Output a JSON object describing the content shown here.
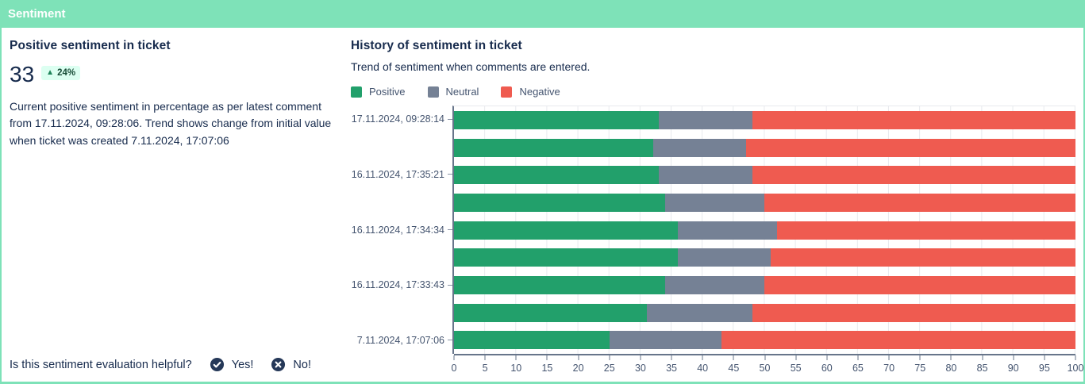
{
  "header": {
    "title": "Sentiment"
  },
  "colors": {
    "header_bg": "#7EE2B8",
    "panel_border": "#7EE2B8",
    "positive": "#22A06B",
    "neutral": "#758195",
    "negative": "#EF5B50",
    "badge_bg": "#DCFFF1",
    "badge_text": "#164B35",
    "badge_arrow": "#1F845A",
    "icon_circle": "#253858"
  },
  "summary": {
    "title": "Positive sentiment in ticket",
    "value": "33",
    "trend": {
      "arrow": "▲",
      "label": "24%"
    },
    "description": "Current positive sentiment in percentage as per latest comment from 17.11.2024, 09:28:06. Trend shows change from initial value when ticket was created 7.11.2024, 17:07:06"
  },
  "feedback": {
    "question": "Is this sentiment evaluation helpful?",
    "yes_label": "Yes!",
    "no_label": "No!"
  },
  "history": {
    "title": "History of sentiment in ticket",
    "subtitle": "Trend of sentiment when comments are entered."
  },
  "chart_data": {
    "type": "bar",
    "orientation": "horizontal",
    "stacked": true,
    "title": "History of sentiment in ticket",
    "xlabel": "",
    "ylabel": "",
    "xlim": [
      0,
      100
    ],
    "x_ticks": [
      0,
      5,
      10,
      15,
      20,
      25,
      30,
      35,
      40,
      45,
      50,
      55,
      60,
      65,
      70,
      75,
      80,
      85,
      90,
      95,
      100
    ],
    "grid": true,
    "legend_position": "top-left",
    "legend": [
      {
        "name": "Positive",
        "color": "#22A06B"
      },
      {
        "name": "Neutral",
        "color": "#758195"
      },
      {
        "name": "Negative",
        "color": "#EF5B50"
      }
    ],
    "categories": [
      "17.11.2024, 09:28:14",
      "",
      "16.11.2024, 17:35:21",
      "",
      "16.11.2024, 17:34:34",
      "",
      "16.11.2024, 17:33:43",
      "",
      "7.11.2024, 17:07:06"
    ],
    "series": [
      {
        "name": "Positive",
        "color": "#22A06B",
        "values": [
          33,
          32,
          33,
          34,
          36,
          36,
          34,
          31,
          25
        ]
      },
      {
        "name": "Neutral",
        "color": "#758195",
        "values": [
          15,
          15,
          15,
          16,
          16,
          15,
          16,
          17,
          18
        ]
      },
      {
        "name": "Negative",
        "color": "#EF5B50",
        "values": [
          52,
          53,
          52,
          50,
          48,
          49,
          50,
          52,
          57
        ]
      }
    ]
  }
}
